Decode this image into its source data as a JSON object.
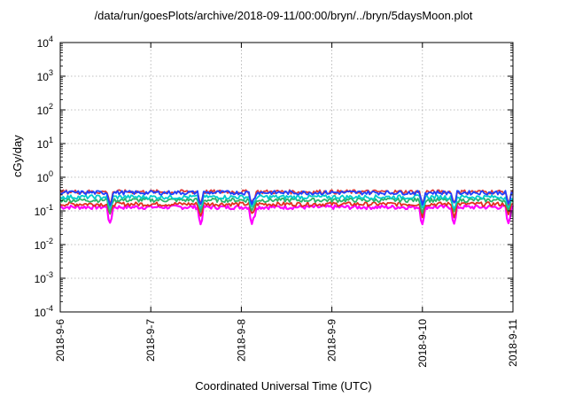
{
  "chart_data": {
    "type": "line",
    "title": "/data/run/goesPlots/archive/2018-09-11/00:00/bryn/../bryn/5daysMoon.plot",
    "xlabel": "Coordinated Universal Time (UTC)",
    "ylabel": "cGy/day",
    "yscale": "log",
    "ylim": [
      0.0001,
      10000
    ],
    "y_tick_exponents": [
      "4",
      "3",
      "2",
      "1",
      "0",
      "-1",
      "-2",
      "-3",
      "-4"
    ],
    "xlim": [
      "2018-09-06",
      "2018-09-11"
    ],
    "x_tick_labels": [
      "2018-9-6",
      "2018-9-7",
      "2018-9-8",
      "2018-9-9",
      "2018-9-10",
      "2018-9-11"
    ],
    "grid": true,
    "series": [
      {
        "color": "#ff00ff",
        "base": 0.13
      },
      {
        "color": "#e0301e",
        "base": 0.16
      },
      {
        "color": "#2ab36b",
        "base": 0.21
      },
      {
        "color": "#00cccc",
        "base": 0.26
      },
      {
        "color": "#e03a3a",
        "base": 0.37
      },
      {
        "color": "#2040ff",
        "base": 0.35
      }
    ],
    "dips_days": [
      0.55,
      1.55,
      2.12,
      4.0,
      4.35,
      4.95
    ]
  }
}
